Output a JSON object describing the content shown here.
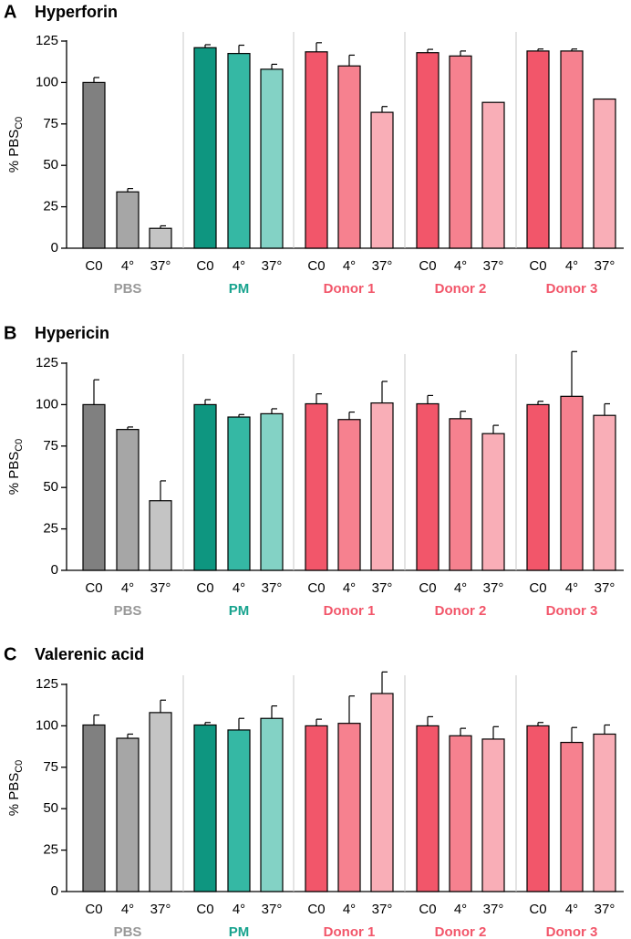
{
  "colors": {
    "pbs": [
      "#808080",
      "#a6a6a6",
      "#c4c4c4"
    ],
    "pm": [
      "#0e9680",
      "#35b8a4",
      "#83d2c5"
    ],
    "donor": [
      "#f2566a",
      "#f6818f",
      "#f9aeb7"
    ],
    "pbs_label": "#999999",
    "pm_label": "#17a38e",
    "donor_label": "#f2566a",
    "separator": "#c8c8c8"
  },
  "chart_data": [
    {
      "type": "bar",
      "panel": "A",
      "title": "Hyperforin",
      "ylabel_main": "% PBS",
      "ylabel_sub": "C0",
      "ylim": [
        0,
        125
      ],
      "yticks": [
        0,
        25,
        50,
        75,
        100,
        125
      ],
      "groups": [
        {
          "name": "PBS",
          "categories": [
            "C0",
            "4°",
            "37°"
          ],
          "values": [
            100,
            34,
            12
          ],
          "errors": [
            3,
            2,
            1.5
          ]
        },
        {
          "name": "PM",
          "categories": [
            "C0",
            "4°",
            "37°"
          ],
          "values": [
            121,
            117.5,
            108
          ],
          "errors": [
            1.8,
            5,
            3
          ]
        },
        {
          "name": "Donor 1",
          "categories": [
            "C0",
            "4°",
            "37°"
          ],
          "values": [
            118.5,
            110,
            82
          ],
          "errors": [
            5.5,
            6.5,
            3.5
          ]
        },
        {
          "name": "Donor 2",
          "categories": [
            "C0",
            "4°",
            "37°"
          ],
          "values": [
            118,
            116,
            88
          ],
          "errors": [
            2,
            3,
            0
          ]
        },
        {
          "name": "Donor 3",
          "categories": [
            "C0",
            "4°",
            "37°"
          ],
          "values": [
            119,
            119,
            90
          ],
          "errors": [
            1.2,
            1.2,
            0
          ]
        }
      ]
    },
    {
      "type": "bar",
      "panel": "B",
      "title": "Hypericin",
      "ylabel_main": "% PBS",
      "ylabel_sub": "C0",
      "ylim": [
        0,
        125
      ],
      "yticks": [
        0,
        25,
        50,
        75,
        100,
        125
      ],
      "groups": [
        {
          "name": "PBS",
          "categories": [
            "C0",
            "4°",
            "37°"
          ],
          "values": [
            100,
            85,
            42
          ],
          "errors": [
            15,
            1.5,
            12
          ]
        },
        {
          "name": "PM",
          "categories": [
            "C0",
            "4°",
            "37°"
          ],
          "values": [
            100,
            92.5,
            94.5
          ],
          "errors": [
            3,
            1.5,
            3
          ]
        },
        {
          "name": "Donor 1",
          "categories": [
            "C0",
            "4°",
            "37°"
          ],
          "values": [
            100.5,
            91,
            101
          ],
          "errors": [
            6,
            4.5,
            13
          ]
        },
        {
          "name": "Donor 2",
          "categories": [
            "C0",
            "4°",
            "37°"
          ],
          "values": [
            100.5,
            91.5,
            82.5
          ],
          "errors": [
            5,
            4.5,
            5
          ]
        },
        {
          "name": "Donor 3",
          "categories": [
            "C0",
            "4°",
            "37°"
          ],
          "values": [
            100,
            105,
            93.5
          ],
          "errors": [
            2,
            27,
            7
          ]
        }
      ]
    },
    {
      "type": "bar",
      "panel": "C",
      "title": "Valerenic acid",
      "ylabel_main": "% PBS",
      "ylabel_sub": "C0",
      "ylim": [
        0,
        125
      ],
      "yticks": [
        0,
        25,
        50,
        75,
        100,
        125
      ],
      "groups": [
        {
          "name": "PBS",
          "categories": [
            "C0",
            "4°",
            "37°"
          ],
          "values": [
            100.5,
            92.5,
            108
          ],
          "errors": [
            6,
            2.5,
            7.5
          ]
        },
        {
          "name": "PM",
          "categories": [
            "C0",
            "4°",
            "37°"
          ],
          "values": [
            100.5,
            97.5,
            104.5
          ],
          "errors": [
            1.5,
            7,
            7.5
          ]
        },
        {
          "name": "Donor 1",
          "categories": [
            "C0",
            "4°",
            "37°"
          ],
          "values": [
            100,
            101.5,
            119.5
          ],
          "errors": [
            4,
            16.5,
            13
          ]
        },
        {
          "name": "Donor 2",
          "categories": [
            "C0",
            "4°",
            "37°"
          ],
          "values": [
            100,
            94,
            92
          ],
          "errors": [
            5.5,
            4.5,
            7.5
          ]
        },
        {
          "name": "Donor 3",
          "categories": [
            "C0",
            "4°",
            "37°"
          ],
          "values": [
            100,
            90,
            95
          ],
          "errors": [
            2,
            9,
            5.5
          ]
        }
      ]
    }
  ]
}
